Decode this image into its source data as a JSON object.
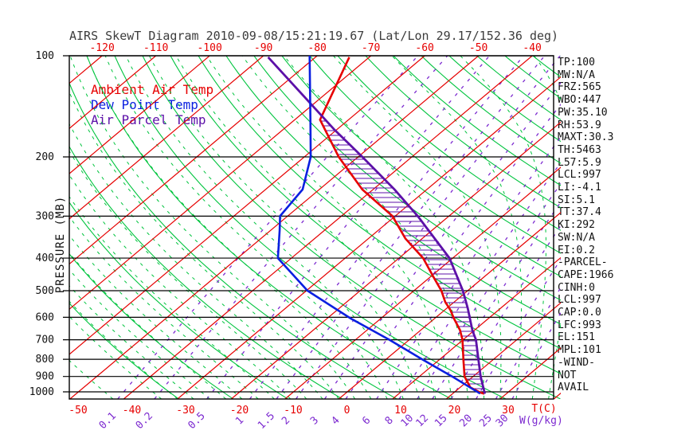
{
  "title": "AIRS SkewT Diagram 2010-09-08/15:21:19.67 (Lat/Lon 29.17/152.36 deg)",
  "axes": {
    "pressure_label": "PRESSURE (MB)",
    "pressure_ticks": [
      100,
      200,
      300,
      400,
      500,
      600,
      700,
      800,
      900,
      1000
    ],
    "top_temp_ticks": [
      -120,
      -110,
      -100,
      -90,
      -80,
      -70,
      -60,
      -50,
      -40
    ],
    "bottom_temp_ticks": [
      -50,
      -40,
      -30,
      -20,
      -10,
      0,
      10,
      20,
      30
    ],
    "temp_unit_label": "T(C)",
    "mixing_unit_label": "W(g/kg)",
    "mixing_ratio_ticks": [
      "0.1",
      "0.2",
      "0.5",
      "1",
      "1.5",
      "2",
      "3",
      "4",
      "6",
      "8",
      "10",
      "12",
      "15",
      "20",
      "25",
      "30"
    ]
  },
  "stats": [
    "TP:100",
    "MW:N/A",
    "FRZ:565",
    "WBO:447",
    "PW:35.10",
    "RH:53.9",
    "MAXT:30.3",
    "TH:5463",
    "L57:5.9",
    "LCL:997",
    "LI:-4.1",
    "SI:5.1",
    "TT:37.4",
    "KI:292",
    "SW:N/A",
    "EI:0.2",
    "-PARCEL-",
    "CAPE:1966",
    "CINH:0",
    "LCL:997",
    "CAP:0.0",
    "LFC:993",
    "EL:151",
    "MPL:101",
    "-WIND-",
    "NOT",
    "AVAIL"
  ],
  "colors": {
    "isotherm_red": "#e60000",
    "adiabat_green": "#00c43e",
    "mixing_purple": "#7d2bd0",
    "frame_black": "#000000",
    "label_black": "#111111",
    "title_gray": "#3c3c3c"
  },
  "chart_data": {
    "type": "line",
    "subtype": "skewt-logp",
    "title": "AIRS SkewT Diagram 2010-09-08/15:21:19.67 (Lat/Lon 29.17/152.36 deg)",
    "xlabel": "Temperature (C) / Mixing ratio (g/kg)",
    "ylabel": "PRESSURE (MB)",
    "pressure_range_mb": [
      100,
      1050
    ],
    "bottom_temp_range_c": [
      -50,
      40
    ],
    "top_temp_range_c": [
      -120,
      -40
    ],
    "grid": "isotherms every 10C, dry adiabats, moist adiabats, mixing-ratio lines, log-p isobars every 100mb",
    "legend_position": "upper-left inside plot",
    "wind_barbs": "NOT AVAIL",
    "series": [
      {
        "name": "Ambient Air Temp",
        "color": "#e60000",
        "points": [
          [
            101,
            -73.7
          ],
          [
            155,
            -65.3
          ],
          [
            200,
            -53.6
          ],
          [
            250,
            -42.0
          ],
          [
            300,
            -30.5
          ],
          [
            350,
            -23.1
          ],
          [
            400,
            -15.5
          ],
          [
            460,
            -8.9
          ],
          [
            500,
            -4.9
          ],
          [
            540,
            -1.7
          ],
          [
            570,
            1.0
          ],
          [
            605,
            3.6
          ],
          [
            655,
            7.3
          ],
          [
            700,
            9.9
          ],
          [
            805,
            14.6
          ],
          [
            900,
            18.4
          ],
          [
            970,
            21.9
          ],
          [
            1005,
            24.9
          ],
          [
            1013,
            25.9
          ]
        ]
      },
      {
        "name": "Dew Point Temp",
        "color": "#0a1fe0",
        "points": [
          [
            100,
            -81.4
          ],
          [
            155,
            -67.1
          ],
          [
            200,
            -58.8
          ],
          [
            250,
            -53.1
          ],
          [
            300,
            -51.4
          ],
          [
            330,
            -48.4
          ],
          [
            400,
            -42.5
          ],
          [
            500,
            -29.8
          ],
          [
            605,
            -15.6
          ],
          [
            700,
            -3.7
          ],
          [
            800,
            6.7
          ],
          [
            900,
            16.1
          ],
          [
            1012,
            25.1
          ]
        ]
      },
      {
        "name": "Air Parcel Temp",
        "color": "#5c10a8",
        "points": [
          [
            101,
            -88.8
          ],
          [
            166,
            -60.4
          ],
          [
            200,
            -49.2
          ],
          [
            250,
            -36.0
          ],
          [
            300,
            -25.8
          ],
          [
            400,
            -10.6
          ],
          [
            500,
            -0.9
          ],
          [
            564,
            3.9
          ],
          [
            657,
            9.7
          ],
          [
            700,
            12.4
          ],
          [
            805,
            17.4
          ],
          [
            900,
            21.4
          ],
          [
            1013,
            26.0
          ]
        ]
      }
    ]
  }
}
